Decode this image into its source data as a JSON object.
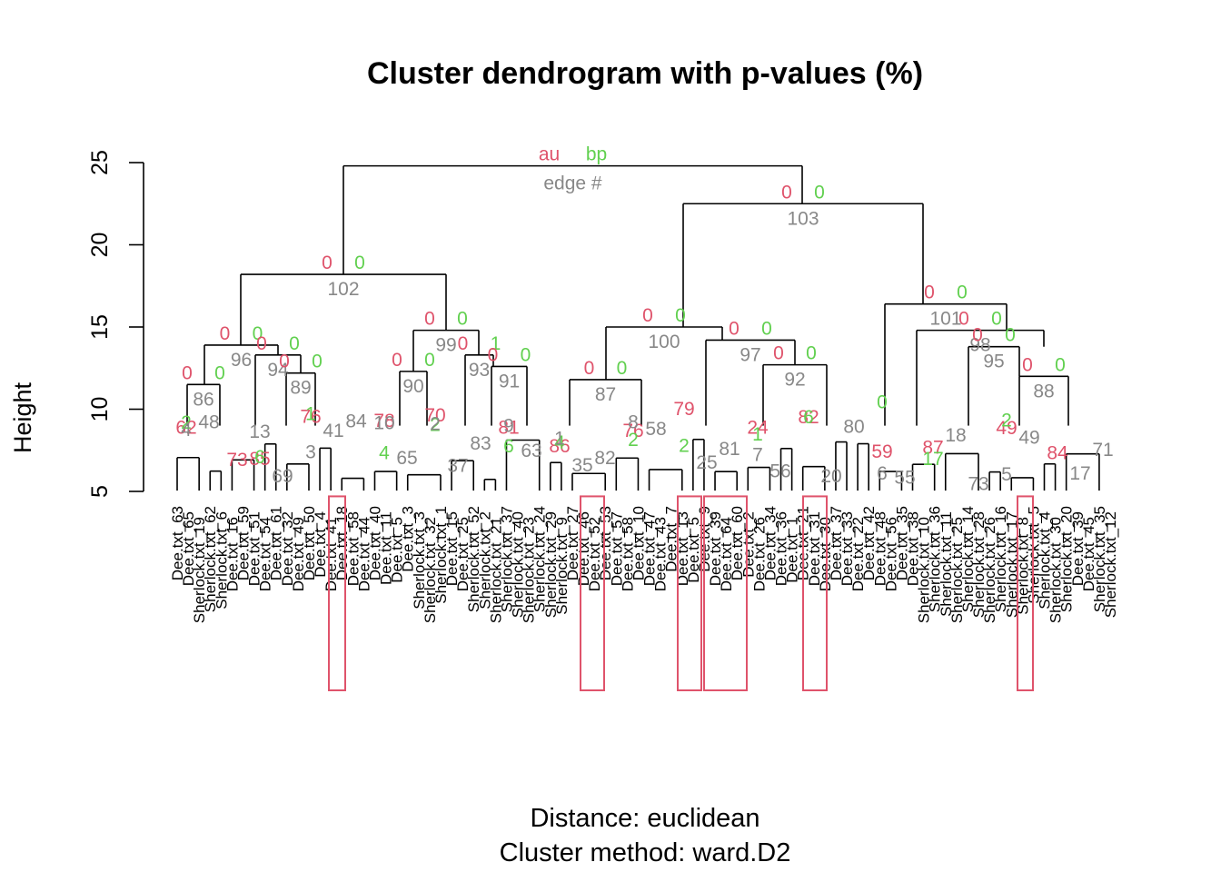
{
  "chart_data": {
    "type": "dendrogram",
    "title": "Cluster dendrogram with p-values (%)",
    "ylabel": "Height",
    "subtitle_lines": [
      "Distance:  euclidean",
      "Cluster method: ward.D2"
    ],
    "ylim": [
      5,
      25
    ],
    "yticks": [
      5,
      10,
      15,
      20,
      25
    ],
    "legend": {
      "au": "au",
      "bp": "bp",
      "edge": "edge #"
    },
    "colors": {
      "au": "#DF536B",
      "bp": "#61D04F",
      "edge": "#888888",
      "rect": "#DF536B"
    },
    "merges": [
      {
        "id": "root",
        "height": 24.8
      },
      {
        "id": "103",
        "edge": "103",
        "au": "0",
        "bp": "0",
        "height": 22.5,
        "parent": "root"
      },
      {
        "id": "102",
        "edge": "102",
        "au": "0",
        "bp": "0",
        "height": 18.2,
        "parent": "root"
      },
      {
        "id": "101",
        "edge": "101",
        "au": "0",
        "bp": "0",
        "height": 16.4,
        "parent": "103"
      },
      {
        "id": "100",
        "edge": "100",
        "au": "0",
        "bp": "0",
        "height": 15.0,
        "parent": "103"
      },
      {
        "id": "99",
        "edge": "99",
        "au": "0",
        "bp": "0",
        "height": 14.8,
        "parent": "102"
      },
      {
        "id": "98",
        "edge": "98",
        "au": "0",
        "bp": "0",
        "height": 14.8,
        "parent": "101"
      },
      {
        "id": "97",
        "edge": "97",
        "au": "0",
        "bp": "0",
        "height": 14.2,
        "parent": "100"
      },
      {
        "id": "96",
        "edge": "96",
        "au": "0",
        "bp": "0",
        "height": 13.9,
        "parent": "102"
      },
      {
        "id": "95",
        "edge": "95",
        "au": "0",
        "bp": "0",
        "height": 13.8,
        "parent": "98"
      },
      {
        "id": "94",
        "edge": "94",
        "au": "0",
        "bp": "0",
        "height": 13.3,
        "parent": "96"
      },
      {
        "id": "93",
        "edge": "93",
        "au": "0",
        "bp": "1",
        "height": 13.3,
        "parent": "99"
      },
      {
        "id": "92",
        "edge": "92",
        "au": "0",
        "bp": "0",
        "height": 12.7,
        "parent": "97"
      },
      {
        "id": "91",
        "edge": "91",
        "au": "0",
        "bp": "0",
        "height": 12.6,
        "parent": "93"
      },
      {
        "id": "90",
        "edge": "90",
        "au": "0",
        "bp": "0",
        "height": 12.3,
        "parent": "99"
      },
      {
        "id": "89",
        "edge": "89",
        "au": "0",
        "bp": "0",
        "height": 12.2,
        "parent": "94"
      },
      {
        "id": "88",
        "edge": "88",
        "au": "0",
        "bp": "0",
        "height": 12.0,
        "parent": "95"
      },
      {
        "id": "87",
        "edge": "87",
        "au": "0",
        "bp": "0",
        "height": 11.8,
        "parent": "100"
      },
      {
        "id": "86",
        "edge": "86",
        "au": "0",
        "bp": "0",
        "height": 11.5,
        "parent": "96"
      }
    ],
    "other_node_labels": {
      "au": [
        "85",
        "78",
        "81",
        "76",
        "24",
        "59",
        "49",
        "62",
        "76",
        "70",
        "86",
        "79",
        "82",
        "87",
        "84",
        "73"
      ],
      "bp": [
        "6",
        "4",
        "6",
        "2",
        "1",
        "0",
        "2",
        "2",
        "1",
        "2",
        "4",
        "2",
        "6",
        "17"
      ],
      "edge": [
        "84",
        "83",
        "82",
        "81",
        "80",
        "73",
        "71",
        "69",
        "65",
        "63",
        "58",
        "56",
        "55",
        "49",
        "48",
        "41",
        "37",
        "35",
        "25",
        "20",
        "18",
        "17",
        "13",
        "10",
        "9",
        "8",
        "7",
        "6",
        "5",
        "4",
        "3",
        "2",
        "1"
      ]
    },
    "leaves": [
      "Dee.txt_63",
      "Dee.txt_65",
      "Sherlock.txt_19",
      "Sherlock.txt_62",
      "Sherlock.txt_6",
      "Dee.txt_16",
      "Dee.txt_59",
      "Dee.txt_51",
      "Dee.txt_54",
      "Dee.txt_61",
      "Dee.txt_32",
      "Dee.txt_49",
      "Dee.txt_50",
      "Dee.txt_4",
      "Dee.txt_41",
      "Dee.txt_18",
      "Dee.txt_58",
      "Dee.txt_44",
      "Dee.txt_40",
      "Dee.txt_11",
      "Dee.txt_5",
      "Dee.txt_3",
      "Sherlock.txt_3",
      "Sherlock.txt_32",
      "Sherlock.txt_1",
      "Dee.txt_15",
      "Dee.txt_25",
      "Sherlock.txt_52",
      "Sherlock.txt_2",
      "Sherlock.txt_21",
      "Sherlock.txt_37",
      "Sherlock.txt_40",
      "Sherlock.txt_23",
      "Sherlock.txt_24",
      "Sherlock.txt_29",
      "Sherlock.txt_9",
      "Dee.txt_27",
      "Dee.txt_46",
      "Dee.txt_52",
      "Dee.txt_53",
      "Dee.txt_57",
      "Dee.txt_58",
      "Dee.txt_10",
      "Dee.txt_47",
      "Dee.txt_43",
      "Dee.txt_7",
      "Dee.txt_13",
      "Dee.txt_5",
      "Dee.txt_9",
      "Dee.txt_39",
      "Dee.txt_64",
      "Dee.txt_60",
      "Dee.txt_2",
      "Dee.txt_26",
      "Dee.txt_34",
      "Dee.txt_36",
      "Dee.txt_1",
      "Dee.txt_21",
      "Dee.txt_31",
      "Dee.txt_30",
      "Dee.txt_37",
      "Dee.txt_33",
      "Dee.txt_22",
      "Dee.txt_42",
      "Dee.txt_48",
      "Dee.txt_56",
      "Dee.txt_35",
      "Dee.txt_38",
      "Sherlock.txt_10",
      "Sherlock.txt_36",
      "Sherlock.txt_11",
      "Sherlock.txt_25",
      "Sherlock.txt_14",
      "Sherlock.txt_28",
      "Sherlock.txt_26",
      "Sherlock.txt_16",
      "Sherlock.txt_17",
      "Sherlock.txt_8",
      "Sherlock.txt_5",
      "Sherlock.txt_4",
      "Sherlock.txt_30",
      "Sherlock.txt_20",
      "Dee.txt_39",
      "Dee.txt_45",
      "Sherlock.txt_35",
      "Sherlock.txt_12"
    ],
    "highlight_rect_count": 7
  }
}
